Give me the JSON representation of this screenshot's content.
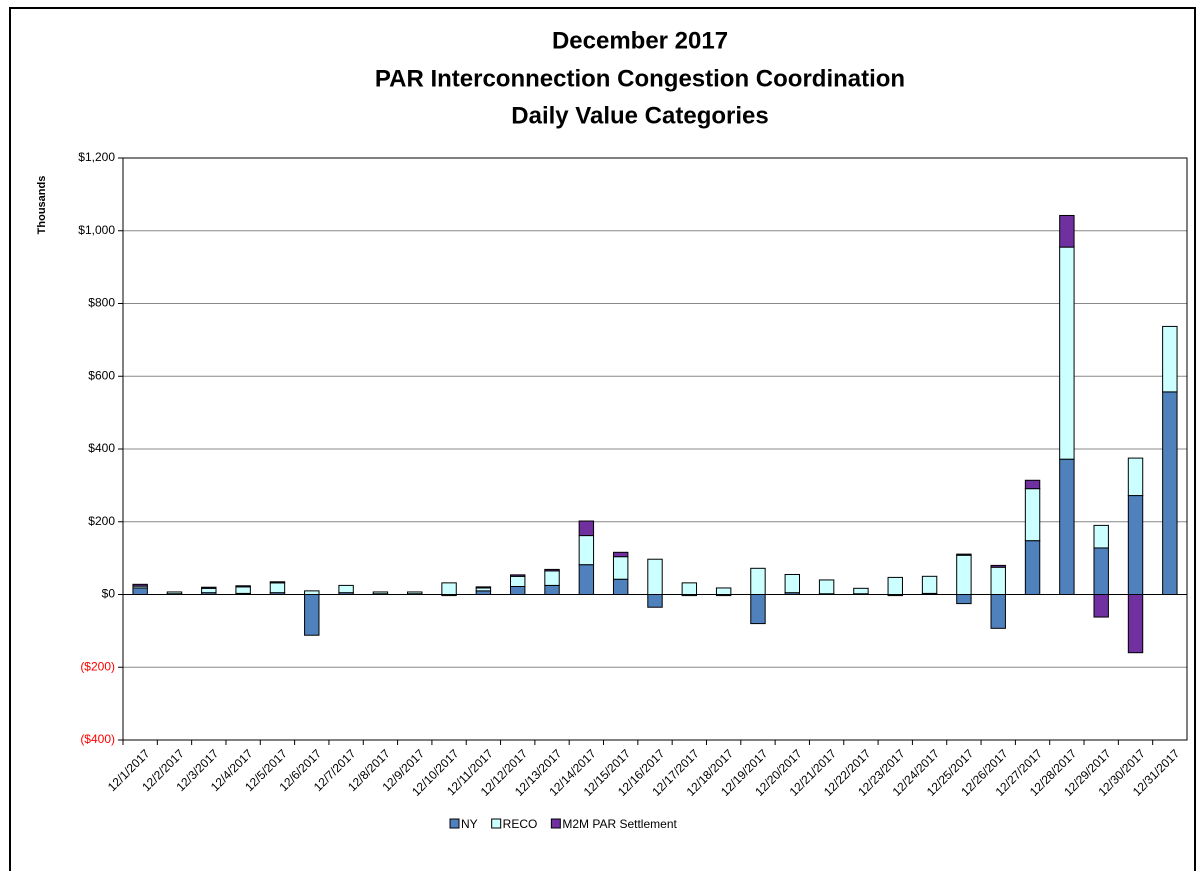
{
  "chart_data": {
    "type": "stacked-bar",
    "title": [
      "December 2017",
      "PAR Interconnection Congestion Coordination",
      "Daily Value Categories"
    ],
    "y_label": "Thousands",
    "categories": [
      "12/1/2017",
      "12/2/2017",
      "12/3/2017",
      "12/4/2017",
      "12/5/2017",
      "12/6/2017",
      "12/7/2017",
      "12/8/2017",
      "12/9/2017",
      "12/10/2017",
      "12/11/2017",
      "12/12/2017",
      "12/13/2017",
      "12/14/2017",
      "12/15/2017",
      "12/16/2017",
      "12/17/2017",
      "12/18/2017",
      "12/19/2017",
      "12/20/2017",
      "12/21/2017",
      "12/22/2017",
      "12/23/2017",
      "12/24/2017",
      "12/25/2017",
      "12/26/2017",
      "12/27/2017",
      "12/28/2017",
      "12/29/2017",
      "12/30/2017",
      "12/31/2017"
    ],
    "series": [
      {
        "name": "NY",
        "color": "#4f81bd",
        "values": [
          18,
          2,
          5,
          3,
          5,
          -112,
          5,
          2,
          2,
          -3,
          10,
          22,
          25,
          82,
          42,
          -35,
          -3,
          -3,
          -80,
          5,
          2,
          2,
          -3,
          3,
          -25,
          -93,
          148,
          372,
          128,
          272,
          557
        ]
      },
      {
        "name": "RECO",
        "color": "#ccffff",
        "values": [
          5,
          5,
          12,
          18,
          27,
          10,
          20,
          5,
          5,
          32,
          8,
          28,
          40,
          80,
          62,
          97,
          32,
          18,
          72,
          50,
          38,
          15,
          47,
          47,
          108,
          75,
          143,
          583,
          62,
          103,
          180
        ]
      },
      {
        "name": "M2M PAR Settlement",
        "color": "#7030a0",
        "values": [
          5,
          0,
          3,
          3,
          3,
          0,
          0,
          0,
          0,
          0,
          3,
          4,
          4,
          40,
          12,
          0,
          0,
          0,
          0,
          0,
          0,
          0,
          0,
          0,
          3,
          5,
          23,
          87,
          -62,
          -160,
          0
        ]
      }
    ],
    "ylim": [
      -400,
      1200
    ],
    "yticks": [
      {
        "value": -400,
        "label": "($400)"
      },
      {
        "value": -200,
        "label": "($200)"
      },
      {
        "value": 0,
        "label": "$0"
      },
      {
        "value": 200,
        "label": "$200"
      },
      {
        "value": 400,
        "label": "$400"
      },
      {
        "value": 600,
        "label": "$600"
      },
      {
        "value": 800,
        "label": "$800"
      },
      {
        "value": 1000,
        "label": "$1,000"
      },
      {
        "value": 1200,
        "label": "$1,200"
      }
    ],
    "negative_tick_color": "#ff0000",
    "grid": true,
    "legend": "bottom"
  }
}
